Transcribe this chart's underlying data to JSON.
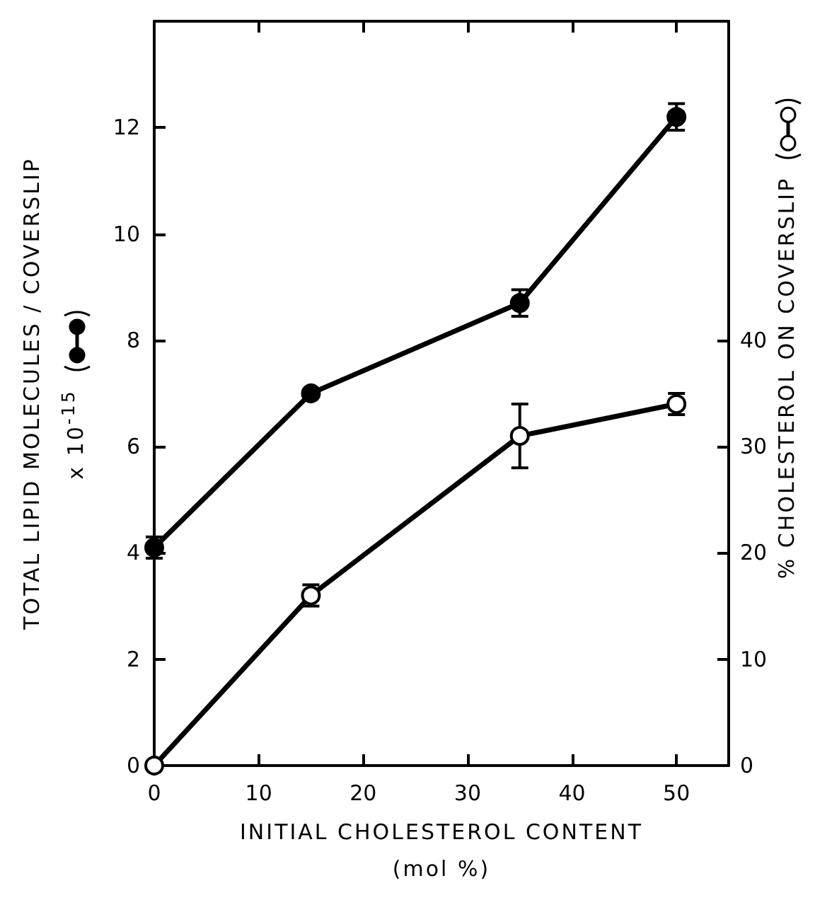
{
  "chart_data": {
    "type": "line",
    "xlabel": "INITIAL CHOLESTEROL CONTENT\n(mol %)",
    "ylabel": "TOTAL LIPID MOLECULES / COVERSLIP\nx 10$^{-15}$",
    "y2label": "% CHOLESTEROL ON COVERSLIP",
    "x": [
      0,
      15,
      35,
      50
    ],
    "series": [
      {
        "color": "#000000",
        "marker": "circle",
        "values": [
          4.1,
          7.0,
          8.7,
          12.2
        ],
        "errors": [
          0.2,
          null,
          0.25,
          0.25
        ]
      },
      {
        "color": "#000000",
        "marker": "emptyCircle",
        "axis": "y2",
        "values": [
          0,
          16,
          31,
          34
        ],
        "errors": [
          null,
          1,
          3,
          1
        ]
      }
    ],
    "xlim": [
      0,
      55
    ],
    "xticks": [
      0,
      10,
      20,
      30,
      40,
      50
    ],
    "ylim": [
      0,
      14
    ],
    "yticks": [
      0,
      2,
      4,
      6,
      8,
      10,
      12
    ],
    "y2lim": [
      0,
      70
    ],
    "y2ticks": [
      0,
      10,
      20,
      30,
      40
    ],
    "grid": false,
    "line_style": "solid"
  }
}
